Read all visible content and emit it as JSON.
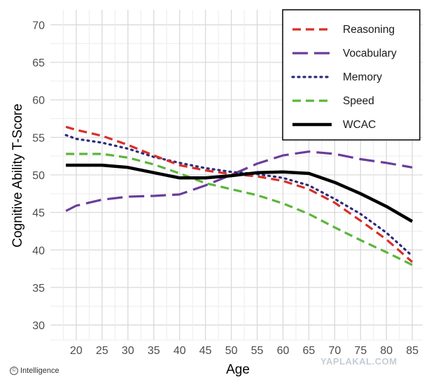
{
  "chart_data": {
    "type": "line",
    "xlabel": "Age",
    "ylabel": "Cognitive Ability T-Score",
    "xlim": [
      15,
      87
    ],
    "ylim": [
      28,
      72
    ],
    "x_ticks": [
      20,
      25,
      30,
      35,
      40,
      45,
      50,
      55,
      60,
      65,
      70,
      75,
      80,
      85
    ],
    "y_ticks": [
      30,
      35,
      40,
      45,
      50,
      55,
      60,
      65,
      70
    ],
    "grid": "on",
    "legend_position": "top-right",
    "x": [
      18,
      20,
      25,
      30,
      35,
      40,
      45,
      50,
      55,
      60,
      65,
      70,
      75,
      80,
      85
    ],
    "series": [
      {
        "name": "Reasoning",
        "color": "#d73027",
        "dash": "dashed",
        "values": [
          56.4,
          56.0,
          55.2,
          54.0,
          52.6,
          51.3,
          50.6,
          50.1,
          49.8,
          49.2,
          48.1,
          46.3,
          43.9,
          41.4,
          38.4
        ]
      },
      {
        "name": "Vocabulary",
        "color": "#6a3d9a",
        "dash": "longdash",
        "values": [
          45.2,
          45.9,
          46.7,
          47.1,
          47.2,
          47.4,
          48.6,
          50.0,
          51.5,
          52.6,
          53.1,
          52.8,
          52.1,
          51.6,
          51.0
        ]
      },
      {
        "name": "Memory",
        "color": "#2b2b7a",
        "dash": "dotted",
        "values": [
          55.3,
          54.8,
          54.3,
          53.5,
          52.4,
          51.6,
          50.9,
          50.4,
          50.1,
          49.6,
          48.6,
          46.8,
          44.8,
          42.3,
          39.2
        ]
      },
      {
        "name": "Speed",
        "color": "#5cb53a",
        "dash": "dashed",
        "values": [
          52.8,
          52.8,
          52.8,
          52.3,
          51.4,
          50.2,
          48.9,
          48.1,
          47.3,
          46.2,
          44.8,
          43.0,
          41.3,
          39.7,
          38.0
        ]
      },
      {
        "name": "WCAC",
        "color": "#000000",
        "dash": "solid",
        "values": [
          51.3,
          51.3,
          51.3,
          51.0,
          50.3,
          49.6,
          49.6,
          49.9,
          50.3,
          50.4,
          50.2,
          49.0,
          47.5,
          45.8,
          43.8
        ]
      }
    ]
  },
  "credit": {
    "text": "Intelligence",
    "icon": "copyright-icon"
  },
  "watermark": "YAPLAKAL.COM"
}
